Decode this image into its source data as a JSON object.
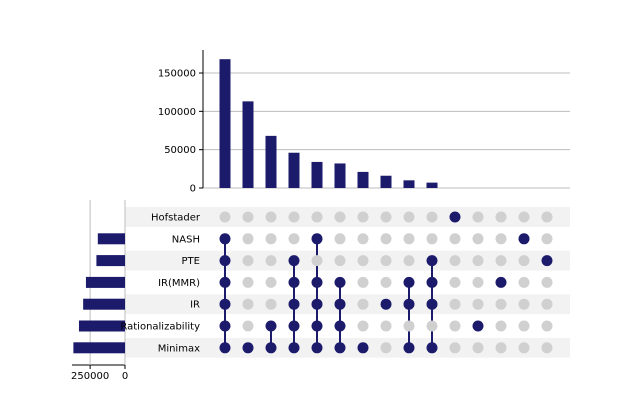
{
  "chart_data": {
    "type": "upset",
    "title": "",
    "colors": {
      "active": "#1b1a6b",
      "inactive": "#d0d0d0",
      "row_shade": "#f2f2f2",
      "grid": "#bdbdbd"
    },
    "intersection_size_axis": {
      "ylim": [
        0,
        180000
      ],
      "ticks": [
        0,
        50000,
        100000,
        150000
      ],
      "tick_labels": [
        "0",
        "50000",
        "100000",
        "150000"
      ],
      "grid": true
    },
    "set_size_axis": {
      "xlim": [
        0,
        380000
      ],
      "ticks": [
        0,
        250000
      ],
      "tick_labels": [
        "0",
        "250000"
      ]
    },
    "sets": [
      {
        "name": "Hofstader",
        "size": 0
      },
      {
        "name": "NASH",
        "size": 195000
      },
      {
        "name": "PTE",
        "size": 205000
      },
      {
        "name": "IR(MMR)",
        "size": 280000
      },
      {
        "name": "IR",
        "size": 300000
      },
      {
        "name": "Rationalizability",
        "size": 330000
      },
      {
        "name": "Minimax",
        "size": 370000
      }
    ],
    "intersections": [
      {
        "members": [
          "NASH",
          "PTE",
          "IR(MMR)",
          "IR",
          "Rationalizability",
          "Minimax"
        ],
        "size": 168000
      },
      {
        "members": [
          "Minimax"
        ],
        "size": 113000
      },
      {
        "members": [
          "Rationalizability",
          "Minimax"
        ],
        "size": 68000
      },
      {
        "members": [
          "PTE",
          "IR(MMR)",
          "IR",
          "Rationalizability",
          "Minimax"
        ],
        "size": 46000
      },
      {
        "members": [
          "NASH",
          "IR(MMR)",
          "IR",
          "Rationalizability",
          "Minimax"
        ],
        "size": 34000
      },
      {
        "members": [
          "IR(MMR)",
          "IR",
          "Rationalizability",
          "Minimax"
        ],
        "size": 32000
      },
      {
        "members": [
          "Minimax"
        ],
        "size": 21000
      },
      {
        "members": [
          "IR"
        ],
        "size": 16000
      },
      {
        "members": [
          "IR(MMR)",
          "IR",
          "Minimax"
        ],
        "size": 10000
      },
      {
        "members": [
          "PTE",
          "IR(MMR)",
          "IR",
          "Minimax"
        ],
        "size": 7000
      },
      {
        "members": [
          "Hofstader"
        ],
        "size": 0
      },
      {
        "members": [
          "Rationalizability"
        ],
        "size": 0
      },
      {
        "members": [
          "IR(MMR)"
        ],
        "size": 0
      },
      {
        "members": [
          "NASH"
        ],
        "size": 0
      },
      {
        "members": [
          "PTE"
        ],
        "size": 0
      }
    ]
  }
}
